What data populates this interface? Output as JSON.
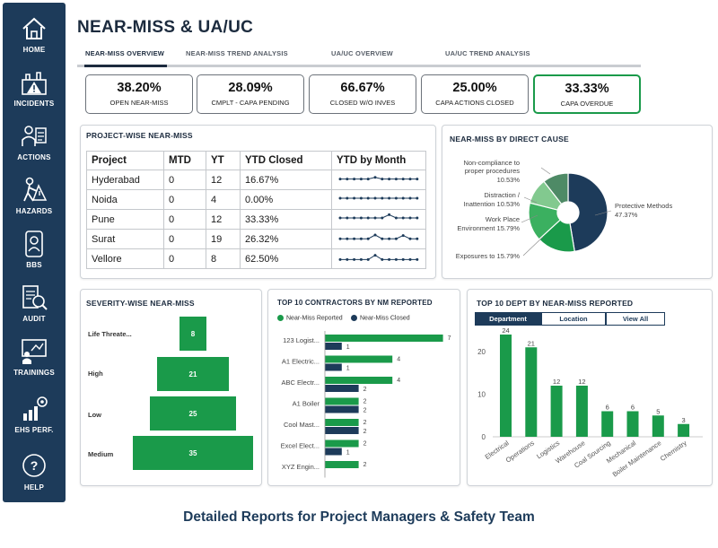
{
  "sidebar": {
    "items": [
      {
        "label": "HOME",
        "icon": "home-icon"
      },
      {
        "label": "INCIDENTS",
        "icon": "incidents-icon"
      },
      {
        "label": "ACTIONS",
        "icon": "actions-icon"
      },
      {
        "label": "HAZARDS",
        "icon": "hazards-icon"
      },
      {
        "label": "BBS",
        "icon": "bbs-icon"
      },
      {
        "label": "AUDIT",
        "icon": "audit-icon"
      },
      {
        "label": "TRAININGS",
        "icon": "trainings-icon"
      },
      {
        "label": "EHS PERF.",
        "icon": "ehs-performance-icon"
      },
      {
        "label": "HELP",
        "icon": "help-icon"
      }
    ]
  },
  "header": {
    "title": "NEAR-MISS & UA/UC",
    "tabs": [
      {
        "label": "NEAR-MISS OVERVIEW",
        "active": true
      },
      {
        "label": "NEAR-MISS TREND ANALYSIS",
        "active": false
      },
      {
        "label": "UA/UC OVERVIEW",
        "active": false
      },
      {
        "label": "UA/UC TREND ANALYSIS",
        "active": false
      }
    ]
  },
  "kpis": [
    {
      "value": "38.20%",
      "label": "OPEN NEAR-MISS"
    },
    {
      "value": "28.09%",
      "label": "CMPLT - CAPA PENDING"
    },
    {
      "value": "66.67%",
      "label": "CLOSED W/O INVES"
    },
    {
      "value": "25.00%",
      "label": "CAPA ACTIONS CLOSED"
    },
    {
      "value": "33.33%",
      "label": "CAPA OVERDUE"
    }
  ],
  "project_table": {
    "title": "PROJECT-WISE NEAR-MISS",
    "columns": [
      "Project",
      "MTD",
      "YT",
      "YTD Closed",
      "YTD by Month"
    ],
    "rows": [
      {
        "project": "Hyderabad",
        "mtd": "0",
        "yt": "12",
        "ytd_closed": "16.67%",
        "spark": [
          0.55,
          0.55,
          0.55,
          0.55,
          0.55,
          0.4,
          0.55,
          0.55,
          0.55,
          0.55,
          0.55,
          0.55
        ]
      },
      {
        "project": "Noida",
        "mtd": "0",
        "yt": "4",
        "ytd_closed": "0.00%",
        "spark": [
          0.5,
          0.5,
          0.5,
          0.5,
          0.5,
          0.5,
          0.5,
          0.5,
          0.5,
          0.5,
          0.5,
          0.5
        ]
      },
      {
        "project": "Pune",
        "mtd": "0",
        "yt": "12",
        "ytd_closed": "33.33%",
        "spark": [
          0.5,
          0.5,
          0.5,
          0.5,
          0.5,
          0.5,
          0.5,
          0.2,
          0.5,
          0.5,
          0.5,
          0.5
        ]
      },
      {
        "project": "Surat",
        "mtd": "0",
        "yt": "19",
        "ytd_closed": "26.32%",
        "spark": [
          0.6,
          0.6,
          0.6,
          0.6,
          0.6,
          0.25,
          0.6,
          0.6,
          0.6,
          0.3,
          0.6,
          0.6
        ]
      },
      {
        "project": "Vellore",
        "mtd": "0",
        "yt": "8",
        "ytd_closed": "62.50%",
        "spark": [
          0.7,
          0.7,
          0.7,
          0.7,
          0.7,
          0.3,
          0.7,
          0.7,
          0.7,
          0.7,
          0.7,
          0.7
        ]
      }
    ]
  },
  "direct_cause": {
    "title": "NEAR-MISS BY DIRECT CAUSE",
    "labels": [
      {
        "line1": "Non-compliance to",
        "line2": "proper procedures",
        "line3": "10.53%"
      },
      {
        "line1": "Distraction /",
        "line2": "Inattention 10.53%",
        "line3": ""
      },
      {
        "line1": "Work Place",
        "line2": "Environment 15.79%",
        "line3": ""
      },
      {
        "line1": "Exposures to 15.79%",
        "line2": "",
        "line3": ""
      },
      {
        "line1": "Protective Methods",
        "line2": "47.37%",
        "line3": ""
      }
    ]
  },
  "severity": {
    "title": "SEVERITY-WISE NEAR-MISS",
    "labels": [
      "Life Threate...",
      "High",
      "Low",
      "Medium"
    ],
    "values_text": [
      "8",
      "21",
      "25",
      "35"
    ]
  },
  "contractors": {
    "title": "TOP 10 CONTRACTORS BY NM REPORTED",
    "legend": [
      "Near-Miss Reported",
      "Near-Miss Closed"
    ],
    "names": [
      "123 Logist...",
      "A1 Electric...",
      "ABC Electr...",
      "A1 Boiler",
      "Cool Mast...",
      "Excel Elect...",
      "XYZ Engin..."
    ],
    "reported_text": [
      "7",
      "4",
      "4",
      "2",
      "2",
      "2",
      "2"
    ],
    "closed_text": [
      "1",
      "1",
      "2",
      "2",
      "2",
      "1",
      ""
    ]
  },
  "departments": {
    "title": "TOP 10 DEPT BY NEAR-MISS REPORTED",
    "buttons": [
      "Department",
      "Location",
      "View All"
    ],
    "value_labels": [
      "24",
      "21",
      "12",
      "12",
      "6",
      "6",
      "5",
      "3"
    ],
    "tick_labels": [
      "20",
      "10",
      "0"
    ]
  },
  "caption": "Detailed Reports for Project Managers & Safety Team",
  "colors": {
    "navy": "#1d3b5a",
    "green": "#1a9a4a",
    "dark": "#1c2b3e"
  },
  "chart_data": [
    {
      "type": "pie",
      "title": "NEAR-MISS BY DIRECT CAUSE",
      "categories": [
        "Protective Methods",
        "Exposures to",
        "Work Place Environment",
        "Distraction / Inattention",
        "Non-compliance to proper procedures"
      ],
      "values": [
        47.37,
        15.79,
        15.79,
        10.53,
        10.53
      ],
      "colors": [
        "#1d3b5a",
        "#1a9a4a",
        "#3bb060",
        "#82c98f",
        "#4e8a66"
      ]
    },
    {
      "type": "bar",
      "title": "SEVERITY-WISE NEAR-MISS",
      "categories": [
        "Life Threate...",
        "High",
        "Low",
        "Medium"
      ],
      "values": [
        8,
        21,
        25,
        35
      ]
    },
    {
      "type": "bar",
      "title": "TOP 10 CONTRACTORS BY NM REPORTED",
      "categories": [
        "123 Logist...",
        "A1 Electric...",
        "ABC Electr...",
        "A1 Boiler",
        "Cool Mast...",
        "Excel Elect...",
        "XYZ Engin..."
      ],
      "series": [
        {
          "name": "Near-Miss Reported",
          "values": [
            7,
            4,
            4,
            2,
            2,
            2,
            2
          ]
        },
        {
          "name": "Near-Miss Closed",
          "values": [
            1,
            1,
            2,
            2,
            2,
            1,
            0
          ]
        }
      ],
      "xlim": [
        0,
        8
      ]
    },
    {
      "type": "bar",
      "title": "TOP 10 DEPT BY NEAR-MISS REPORTED",
      "categories": [
        "Electrical",
        "Operations",
        "Logistics",
        "Warehouse",
        "Coal Sourcing",
        "Mechanical",
        "Boiler Maintenance",
        "Chemistry"
      ],
      "values": [
        24,
        21,
        12,
        12,
        6,
        6,
        5,
        3
      ],
      "ylim": [
        0,
        26
      ]
    }
  ]
}
